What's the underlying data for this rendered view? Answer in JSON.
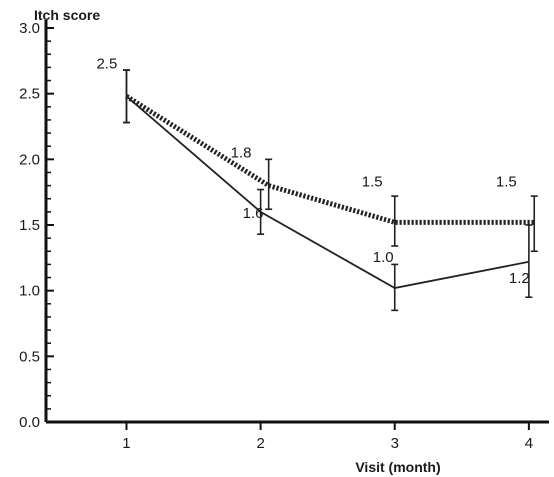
{
  "chart_data": {
    "type": "line",
    "title": "",
    "ylabel": "Itch score",
    "xlabel": "Visit (month)",
    "categories": [
      "1",
      "2",
      "3",
      "4"
    ],
    "x": [
      1,
      2,
      3,
      4
    ],
    "ylim": [
      0.0,
      3.0
    ],
    "xlim": [
      0.4,
      4.15
    ],
    "yticks": [
      "0.0",
      "0.5",
      "1.0",
      "1.5",
      "2.0",
      "2.5",
      "3.0"
    ],
    "xticks": [
      "1",
      "2",
      "3",
      "4"
    ],
    "grid": false,
    "series": [
      {
        "style": "solid",
        "values": [
          2.48,
          1.6,
          1.02,
          1.22
        ],
        "error_low": [
          2.28,
          1.43,
          0.85,
          0.95
        ],
        "error_high": [
          2.68,
          1.77,
          1.2,
          1.5
        ],
        "x_offset": [
          0,
          0,
          0,
          0
        ],
        "labels": [
          "",
          "1.6",
          "1.0",
          "1.2"
        ]
      },
      {
        "style": "dotted",
        "values": [
          2.48,
          1.8,
          1.52,
          1.52
        ],
        "error_low": [
          2.28,
          1.62,
          1.34,
          1.3
        ],
        "error_high": [
          2.68,
          2.0,
          1.72,
          1.72
        ],
        "x_offset": [
          0,
          0.06,
          0,
          0.04
        ],
        "labels": [
          "2.5",
          "1.8",
          "1.5",
          "1.5"
        ]
      }
    ]
  }
}
